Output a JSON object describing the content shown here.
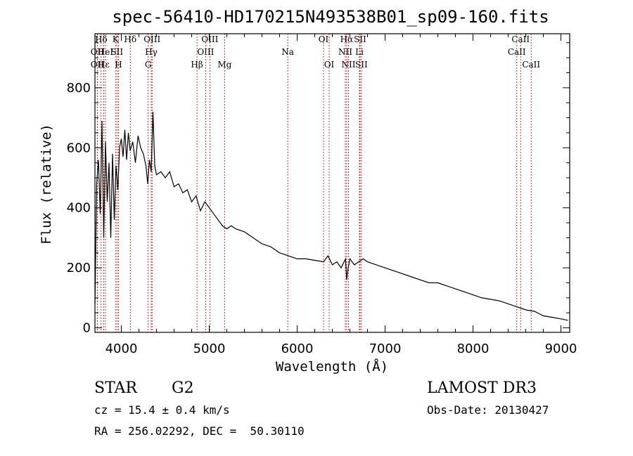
{
  "chart_data": {
    "type": "line",
    "title": "spec-56410-HD170215N493538B01_sp09-160.fits",
    "xlabel": "Wavelength (Å)",
    "ylabel": "Flux (relative)",
    "xlim": [
      3700,
      9100
    ],
    "ylim": [
      -15,
      980
    ],
    "xticks": [
      4000,
      5000,
      6000,
      7000,
      8000,
      9000
    ],
    "yticks": [
      0,
      200,
      400,
      600,
      800
    ],
    "series": [
      {
        "name": "flux",
        "x": [
          3700,
          3720,
          3740,
          3760,
          3780,
          3800,
          3820,
          3840,
          3860,
          3880,
          3900,
          3920,
          3940,
          3960,
          3980,
          4000,
          4020,
          4040,
          4060,
          4080,
          4100,
          4130,
          4160,
          4190,
          4220,
          4250,
          4280,
          4300,
          4320,
          4340,
          4360,
          4380,
          4400,
          4450,
          4500,
          4550,
          4600,
          4650,
          4700,
          4750,
          4800,
          4850,
          4900,
          4950,
          5000,
          5050,
          5100,
          5150,
          5200,
          5250,
          5300,
          5400,
          5500,
          5600,
          5700,
          5800,
          5900,
          6000,
          6100,
          6200,
          6300,
          6350,
          6400,
          6450,
          6500,
          6550,
          6563,
          6580,
          6600,
          6650,
          6700,
          6750,
          6800,
          6900,
          7000,
          7100,
          7200,
          7300,
          7400,
          7500,
          7600,
          7700,
          7800,
          7900,
          8000,
          8100,
          8200,
          8300,
          8400,
          8500,
          8600,
          8700,
          8800,
          8900,
          9000,
          9080
        ],
        "y": [
          80,
          480,
          560,
          380,
          690,
          300,
          620,
          420,
          550,
          300,
          580,
          360,
          540,
          460,
          600,
          630,
          570,
          660,
          560,
          650,
          590,
          620,
          550,
          640,
          600,
          580,
          540,
          480,
          560,
          520,
          720,
          540,
          510,
          520,
          500,
          520,
          470,
          480,
          450,
          460,
          420,
          440,
          390,
          420,
          400,
          380,
          360,
          340,
          330,
          340,
          330,
          320,
          300,
          280,
          270,
          250,
          240,
          230,
          230,
          225,
          220,
          240,
          210,
          220,
          200,
          230,
          160,
          200,
          230,
          210,
          220,
          230,
          220,
          210,
          200,
          190,
          180,
          170,
          160,
          150,
          150,
          140,
          130,
          120,
          110,
          100,
          95,
          90,
          80,
          70,
          60,
          55,
          40,
          35,
          30,
          25
        ]
      }
    ],
    "emission_lines": [
      {
        "label": "Hδ",
        "x": 3770,
        "row": 0
      },
      {
        "label": "OII",
        "x": 3727,
        "row": 1
      },
      {
        "label": "OII",
        "x": 3727,
        "row": 2
      },
      {
        "label": "Hε",
        "x": 3800,
        "row": 2
      },
      {
        "label": "HeI",
        "x": 3820,
        "row": 1
      },
      {
        "label": "K",
        "x": 3934,
        "row": 0
      },
      {
        "label": "SII",
        "x": 3950,
        "row": 1
      },
      {
        "label": "H",
        "x": 3968,
        "row": 2
      },
      {
        "label": "Hδ",
        "x": 4102,
        "row": 0
      },
      {
        "label": "OIII",
        "x": 4350,
        "row": 0
      },
      {
        "label": "Hγ",
        "x": 4340,
        "row": 1
      },
      {
        "label": "G",
        "x": 4305,
        "row": 2
      },
      {
        "label": "OIII",
        "x": 5007,
        "row": 0
      },
      {
        "label": "OIII",
        "x": 4959,
        "row": 1
      },
      {
        "label": "Hβ",
        "x": 4861,
        "row": 2
      },
      {
        "label": "Mg",
        "x": 5175,
        "row": 2
      },
      {
        "label": "Na",
        "x": 5893,
        "row": 1
      },
      {
        "label": "OI",
        "x": 6300,
        "row": 0
      },
      {
        "label": "OI",
        "x": 6364,
        "row": 2
      },
      {
        "label": "Hα",
        "x": 6563,
        "row": 0
      },
      {
        "label": "NII",
        "x": 6548,
        "row": 1
      },
      {
        "label": "NII",
        "x": 6584,
        "row": 2
      },
      {
        "label": "SII",
        "x": 6716,
        "row": 0
      },
      {
        "label": "Li",
        "x": 6708,
        "row": 1
      },
      {
        "label": "SII",
        "x": 6731,
        "row": 2
      },
      {
        "label": "CaII",
        "x": 8542,
        "row": 0
      },
      {
        "label": "CaII",
        "x": 8498,
        "row": 1
      },
      {
        "label": "CaII",
        "x": 8662,
        "row": 2
      }
    ],
    "line_color": "#000000",
    "marker_color": "#cc0000"
  },
  "info": {
    "object_class": "STAR",
    "subclass": "G2",
    "survey": "LAMOST DR3",
    "cz": "cz = 15.4 ± 0.4 km/s",
    "obs_date": "Obs-Date: 20130427",
    "coords": "RA = 256.02292, DEC =  50.30110"
  }
}
